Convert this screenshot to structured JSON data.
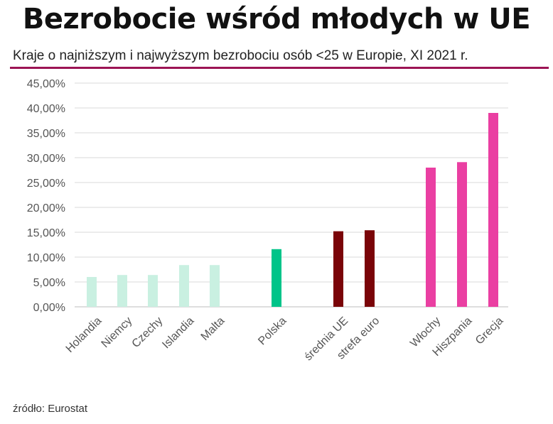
{
  "header": {
    "title": "Bezrobocie wśród młodych w UE",
    "subtitle": "Kraje o najniższym i najwyższym bezrobociu osób <25 w Europie, XI 2021 r."
  },
  "footer": {
    "source": "źródło: Eurostat"
  },
  "chart_data": {
    "type": "bar",
    "categories": [
      "Holandia",
      "Niemcy",
      "Czechy",
      "Islandia",
      "Malta",
      "Polska",
      "średnia UE",
      "strefa euro",
      "Włochy",
      "Hiszpania",
      "Grecja"
    ],
    "values": [
      6.0,
      6.4,
      6.4,
      8.4,
      8.4,
      11.6,
      15.2,
      15.4,
      28.0,
      29.1,
      39.0
    ],
    "colors": [
      "#c9f0e1",
      "#c9f0e1",
      "#c9f0e1",
      "#c9f0e1",
      "#c9f0e1",
      "#00c489",
      "#7a0408",
      "#7a0408",
      "#ea3fa2",
      "#ea3fa2",
      "#ea3fa2"
    ],
    "y_ticks": [
      "0,00%",
      "5,00%",
      "10,00%",
      "15,00%",
      "20,00%",
      "25,00%",
      "30,00%",
      "35,00%",
      "40,00%",
      "45,00%"
    ],
    "ylim": [
      0,
      45
    ],
    "grid": true
  }
}
